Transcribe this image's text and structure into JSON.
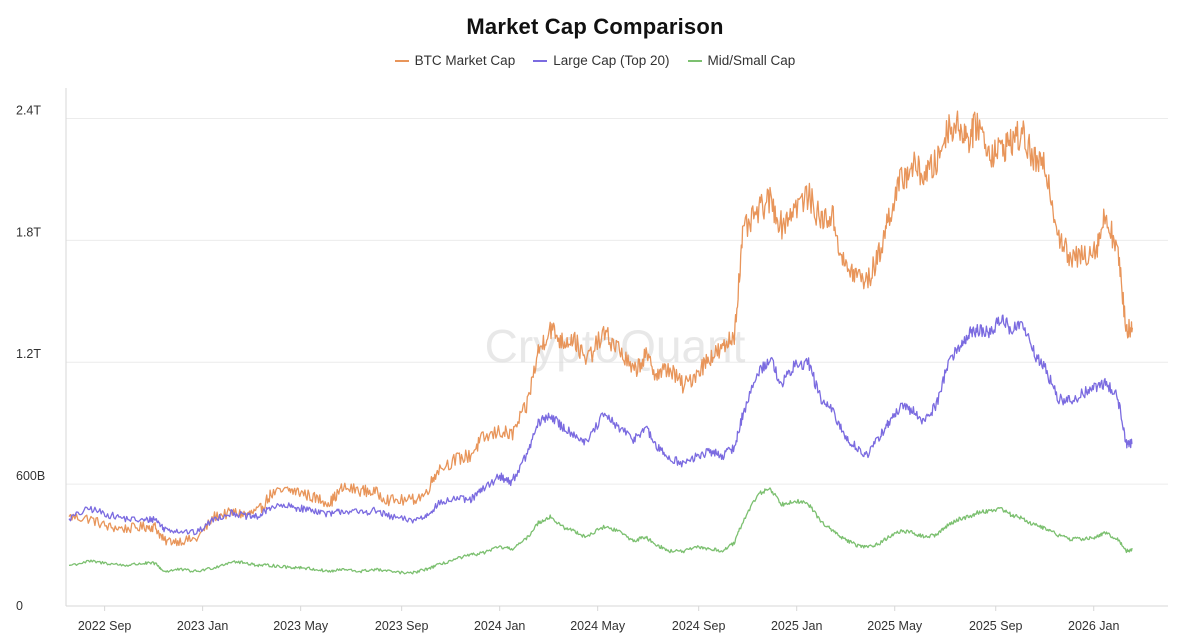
{
  "watermark": "CryptoQuant",
  "colors": {
    "btc": "#e8955a",
    "large": "#7b6be0",
    "mid": "#7cc070",
    "grid": "#ececec",
    "axis": "#d7d7d7"
  },
  "chart_data": {
    "type": "line",
    "title": "Market Cap Comparison",
    "xlabel": "",
    "ylabel": "",
    "ylim": [
      0,
      2.55
    ],
    "y_unit": "trillions USD",
    "y_ticks": [
      {
        "value": 0,
        "label": "0"
      },
      {
        "value": 0.6,
        "label": "600B"
      },
      {
        "value": 1.2,
        "label": "1.2T"
      },
      {
        "value": 1.8,
        "label": "1.8T"
      },
      {
        "value": 2.4,
        "label": "2.4T"
      }
    ],
    "x_ticks": [
      {
        "value": 2022.67,
        "label": "2022 Sep"
      },
      {
        "value": 2023.0,
        "label": "2023 Jan"
      },
      {
        "value": 2023.33,
        "label": "2023 May"
      },
      {
        "value": 2023.67,
        "label": "2023 Sep"
      },
      {
        "value": 2024.0,
        "label": "2024 Jan"
      },
      {
        "value": 2024.33,
        "label": "2024 May"
      },
      {
        "value": 2024.67,
        "label": "2024 Sep"
      },
      {
        "value": 2025.0,
        "label": "2025 Jan"
      },
      {
        "value": 2025.33,
        "label": "2025 May"
      },
      {
        "value": 2025.67,
        "label": "2025 Sep"
      },
      {
        "value": 2026.0,
        "label": "2026 Jan"
      }
    ],
    "xlim": [
      2022.54,
      2026.25
    ],
    "x_unit": "decimal year",
    "series": [
      {
        "name": "BTC Market Cap",
        "color": "#e8955a",
        "points": [
          [
            2022.55,
            0.44
          ],
          [
            2022.62,
            0.43
          ],
          [
            2022.68,
            0.39
          ],
          [
            2022.74,
            0.38
          ],
          [
            2022.8,
            0.39
          ],
          [
            2022.84,
            0.39
          ],
          [
            2022.87,
            0.32
          ],
          [
            2022.92,
            0.32
          ],
          [
            2022.98,
            0.33
          ],
          [
            2023.04,
            0.44
          ],
          [
            2023.1,
            0.46
          ],
          [
            2023.15,
            0.45
          ],
          [
            2023.19,
            0.47
          ],
          [
            2023.23,
            0.55
          ],
          [
            2023.29,
            0.57
          ],
          [
            2023.33,
            0.56
          ],
          [
            2023.38,
            0.53
          ],
          [
            2023.43,
            0.51
          ],
          [
            2023.47,
            0.58
          ],
          [
            2023.53,
            0.57
          ],
          [
            2023.58,
            0.56
          ],
          [
            2023.63,
            0.52
          ],
          [
            2023.7,
            0.52
          ],
          [
            2023.75,
            0.55
          ],
          [
            2023.79,
            0.67
          ],
          [
            2023.85,
            0.72
          ],
          [
            2023.9,
            0.74
          ],
          [
            2023.94,
            0.82
          ],
          [
            2024.0,
            0.86
          ],
          [
            2024.04,
            0.84
          ],
          [
            2024.09,
            0.98
          ],
          [
            2024.13,
            1.25
          ],
          [
            2024.17,
            1.37
          ],
          [
            2024.21,
            1.3
          ],
          [
            2024.25,
            1.32
          ],
          [
            2024.29,
            1.2
          ],
          [
            2024.35,
            1.34
          ],
          [
            2024.4,
            1.27
          ],
          [
            2024.45,
            1.15
          ],
          [
            2024.49,
            1.23
          ],
          [
            2024.53,
            1.14
          ],
          [
            2024.57,
            1.17
          ],
          [
            2024.62,
            1.08
          ],
          [
            2024.67,
            1.16
          ],
          [
            2024.71,
            1.23
          ],
          [
            2024.75,
            1.26
          ],
          [
            2024.79,
            1.34
          ],
          [
            2024.82,
            1.84
          ],
          [
            2024.87,
            1.94
          ],
          [
            2024.91,
            2.0
          ],
          [
            2024.95,
            1.87
          ],
          [
            2024.99,
            1.96
          ],
          [
            2025.04,
            2.02
          ],
          [
            2025.08,
            1.9
          ],
          [
            2025.12,
            1.92
          ],
          [
            2025.16,
            1.67
          ],
          [
            2025.2,
            1.63
          ],
          [
            2025.24,
            1.6
          ],
          [
            2025.28,
            1.74
          ],
          [
            2025.31,
            1.92
          ],
          [
            2025.35,
            2.09
          ],
          [
            2025.39,
            2.17
          ],
          [
            2025.43,
            2.12
          ],
          [
            2025.47,
            2.18
          ],
          [
            2025.51,
            2.36
          ],
          [
            2025.55,
            2.36
          ],
          [
            2025.58,
            2.3
          ],
          [
            2025.61,
            2.38
          ],
          [
            2025.65,
            2.23
          ],
          [
            2025.69,
            2.25
          ],
          [
            2025.72,
            2.29
          ],
          [
            2025.76,
            2.32
          ],
          [
            2025.8,
            2.19
          ],
          [
            2025.84,
            2.15
          ],
          [
            2025.88,
            1.84
          ],
          [
            2025.92,
            1.7
          ],
          [
            2025.97,
            1.73
          ],
          [
            2026.01,
            1.77
          ],
          [
            2026.04,
            1.93
          ],
          [
            2026.08,
            1.75
          ],
          [
            2026.11,
            1.36
          ],
          [
            2026.13,
            1.37
          ]
        ]
      },
      {
        "name": "Large Cap (Top 20)",
        "color": "#7b6be0",
        "points": [
          [
            2022.55,
            0.43
          ],
          [
            2022.62,
            0.48
          ],
          [
            2022.68,
            0.45
          ],
          [
            2022.74,
            0.43
          ],
          [
            2022.8,
            0.42
          ],
          [
            2022.84,
            0.43
          ],
          [
            2022.87,
            0.38
          ],
          [
            2022.92,
            0.37
          ],
          [
            2022.98,
            0.36
          ],
          [
            2023.04,
            0.43
          ],
          [
            2023.1,
            0.46
          ],
          [
            2023.15,
            0.44
          ],
          [
            2023.19,
            0.44
          ],
          [
            2023.23,
            0.49
          ],
          [
            2023.29,
            0.49
          ],
          [
            2023.33,
            0.48
          ],
          [
            2023.38,
            0.47
          ],
          [
            2023.43,
            0.45
          ],
          [
            2023.47,
            0.47
          ],
          [
            2023.53,
            0.46
          ],
          [
            2023.58,
            0.47
          ],
          [
            2023.63,
            0.44
          ],
          [
            2023.7,
            0.42
          ],
          [
            2023.75,
            0.44
          ],
          [
            2023.79,
            0.5
          ],
          [
            2023.85,
            0.53
          ],
          [
            2023.9,
            0.52
          ],
          [
            2023.94,
            0.57
          ],
          [
            2024.0,
            0.64
          ],
          [
            2024.04,
            0.61
          ],
          [
            2024.09,
            0.74
          ],
          [
            2024.13,
            0.9
          ],
          [
            2024.17,
            0.94
          ],
          [
            2024.21,
            0.88
          ],
          [
            2024.25,
            0.85
          ],
          [
            2024.29,
            0.8
          ],
          [
            2024.35,
            0.94
          ],
          [
            2024.4,
            0.88
          ],
          [
            2024.45,
            0.82
          ],
          [
            2024.49,
            0.88
          ],
          [
            2024.53,
            0.78
          ],
          [
            2024.57,
            0.73
          ],
          [
            2024.62,
            0.7
          ],
          [
            2024.67,
            0.74
          ],
          [
            2024.71,
            0.76
          ],
          [
            2024.75,
            0.74
          ],
          [
            2024.79,
            0.78
          ],
          [
            2024.82,
            0.95
          ],
          [
            2024.87,
            1.15
          ],
          [
            2024.91,
            1.22
          ],
          [
            2024.95,
            1.09
          ],
          [
            2024.99,
            1.18
          ],
          [
            2025.04,
            1.2
          ],
          [
            2025.08,
            1.02
          ],
          [
            2025.12,
            0.96
          ],
          [
            2025.16,
            0.84
          ],
          [
            2025.2,
            0.78
          ],
          [
            2025.24,
            0.74
          ],
          [
            2025.28,
            0.84
          ],
          [
            2025.31,
            0.9
          ],
          [
            2025.35,
            0.98
          ],
          [
            2025.39,
            0.96
          ],
          [
            2025.43,
            0.91
          ],
          [
            2025.47,
            0.99
          ],
          [
            2025.51,
            1.2
          ],
          [
            2025.55,
            1.28
          ],
          [
            2025.58,
            1.34
          ],
          [
            2025.61,
            1.36
          ],
          [
            2025.65,
            1.34
          ],
          [
            2025.69,
            1.42
          ],
          [
            2025.72,
            1.36
          ],
          [
            2025.76,
            1.39
          ],
          [
            2025.8,
            1.24
          ],
          [
            2025.84,
            1.16
          ],
          [
            2025.88,
            1.02
          ],
          [
            2025.92,
            1.01
          ],
          [
            2025.97,
            1.05
          ],
          [
            2026.01,
            1.08
          ],
          [
            2026.04,
            1.1
          ],
          [
            2026.08,
            1.03
          ],
          [
            2026.11,
            0.8
          ],
          [
            2026.13,
            0.8
          ]
        ]
      },
      {
        "name": "Mid/Small Cap",
        "color": "#7cc070",
        "points": [
          [
            2022.55,
            0.2
          ],
          [
            2022.62,
            0.22
          ],
          [
            2022.68,
            0.21
          ],
          [
            2022.74,
            0.2
          ],
          [
            2022.8,
            0.21
          ],
          [
            2022.84,
            0.21
          ],
          [
            2022.87,
            0.17
          ],
          [
            2022.92,
            0.18
          ],
          [
            2022.98,
            0.17
          ],
          [
            2023.04,
            0.19
          ],
          [
            2023.1,
            0.22
          ],
          [
            2023.15,
            0.21
          ],
          [
            2023.19,
            0.2
          ],
          [
            2023.23,
            0.2
          ],
          [
            2023.29,
            0.19
          ],
          [
            2023.33,
            0.19
          ],
          [
            2023.38,
            0.18
          ],
          [
            2023.43,
            0.17
          ],
          [
            2023.47,
            0.18
          ],
          [
            2023.53,
            0.17
          ],
          [
            2023.58,
            0.18
          ],
          [
            2023.63,
            0.17
          ],
          [
            2023.7,
            0.16
          ],
          [
            2023.75,
            0.18
          ],
          [
            2023.79,
            0.2
          ],
          [
            2023.85,
            0.23
          ],
          [
            2023.9,
            0.25
          ],
          [
            2023.94,
            0.26
          ],
          [
            2024.0,
            0.29
          ],
          [
            2024.04,
            0.28
          ],
          [
            2024.09,
            0.33
          ],
          [
            2024.13,
            0.41
          ],
          [
            2024.17,
            0.44
          ],
          [
            2024.21,
            0.39
          ],
          [
            2024.25,
            0.37
          ],
          [
            2024.29,
            0.34
          ],
          [
            2024.35,
            0.39
          ],
          [
            2024.4,
            0.37
          ],
          [
            2024.45,
            0.32
          ],
          [
            2024.49,
            0.34
          ],
          [
            2024.53,
            0.3
          ],
          [
            2024.57,
            0.27
          ],
          [
            2024.62,
            0.27
          ],
          [
            2024.67,
            0.29
          ],
          [
            2024.71,
            0.28
          ],
          [
            2024.75,
            0.27
          ],
          [
            2024.79,
            0.31
          ],
          [
            2024.82,
            0.42
          ],
          [
            2024.87,
            0.55
          ],
          [
            2024.91,
            0.58
          ],
          [
            2024.95,
            0.5
          ],
          [
            2024.99,
            0.52
          ],
          [
            2025.04,
            0.5
          ],
          [
            2025.08,
            0.42
          ],
          [
            2025.12,
            0.37
          ],
          [
            2025.16,
            0.33
          ],
          [
            2025.2,
            0.3
          ],
          [
            2025.24,
            0.29
          ],
          [
            2025.28,
            0.31
          ],
          [
            2025.31,
            0.34
          ],
          [
            2025.35,
            0.37
          ],
          [
            2025.39,
            0.36
          ],
          [
            2025.43,
            0.34
          ],
          [
            2025.47,
            0.35
          ],
          [
            2025.51,
            0.4
          ],
          [
            2025.55,
            0.43
          ],
          [
            2025.58,
            0.44
          ],
          [
            2025.61,
            0.46
          ],
          [
            2025.65,
            0.47
          ],
          [
            2025.69,
            0.48
          ],
          [
            2025.72,
            0.45
          ],
          [
            2025.76,
            0.43
          ],
          [
            2025.8,
            0.4
          ],
          [
            2025.84,
            0.38
          ],
          [
            2025.88,
            0.35
          ],
          [
            2025.92,
            0.33
          ],
          [
            2025.97,
            0.33
          ],
          [
            2026.01,
            0.34
          ],
          [
            2026.04,
            0.36
          ],
          [
            2026.08,
            0.33
          ],
          [
            2026.11,
            0.27
          ],
          [
            2026.13,
            0.28
          ]
        ]
      }
    ]
  }
}
